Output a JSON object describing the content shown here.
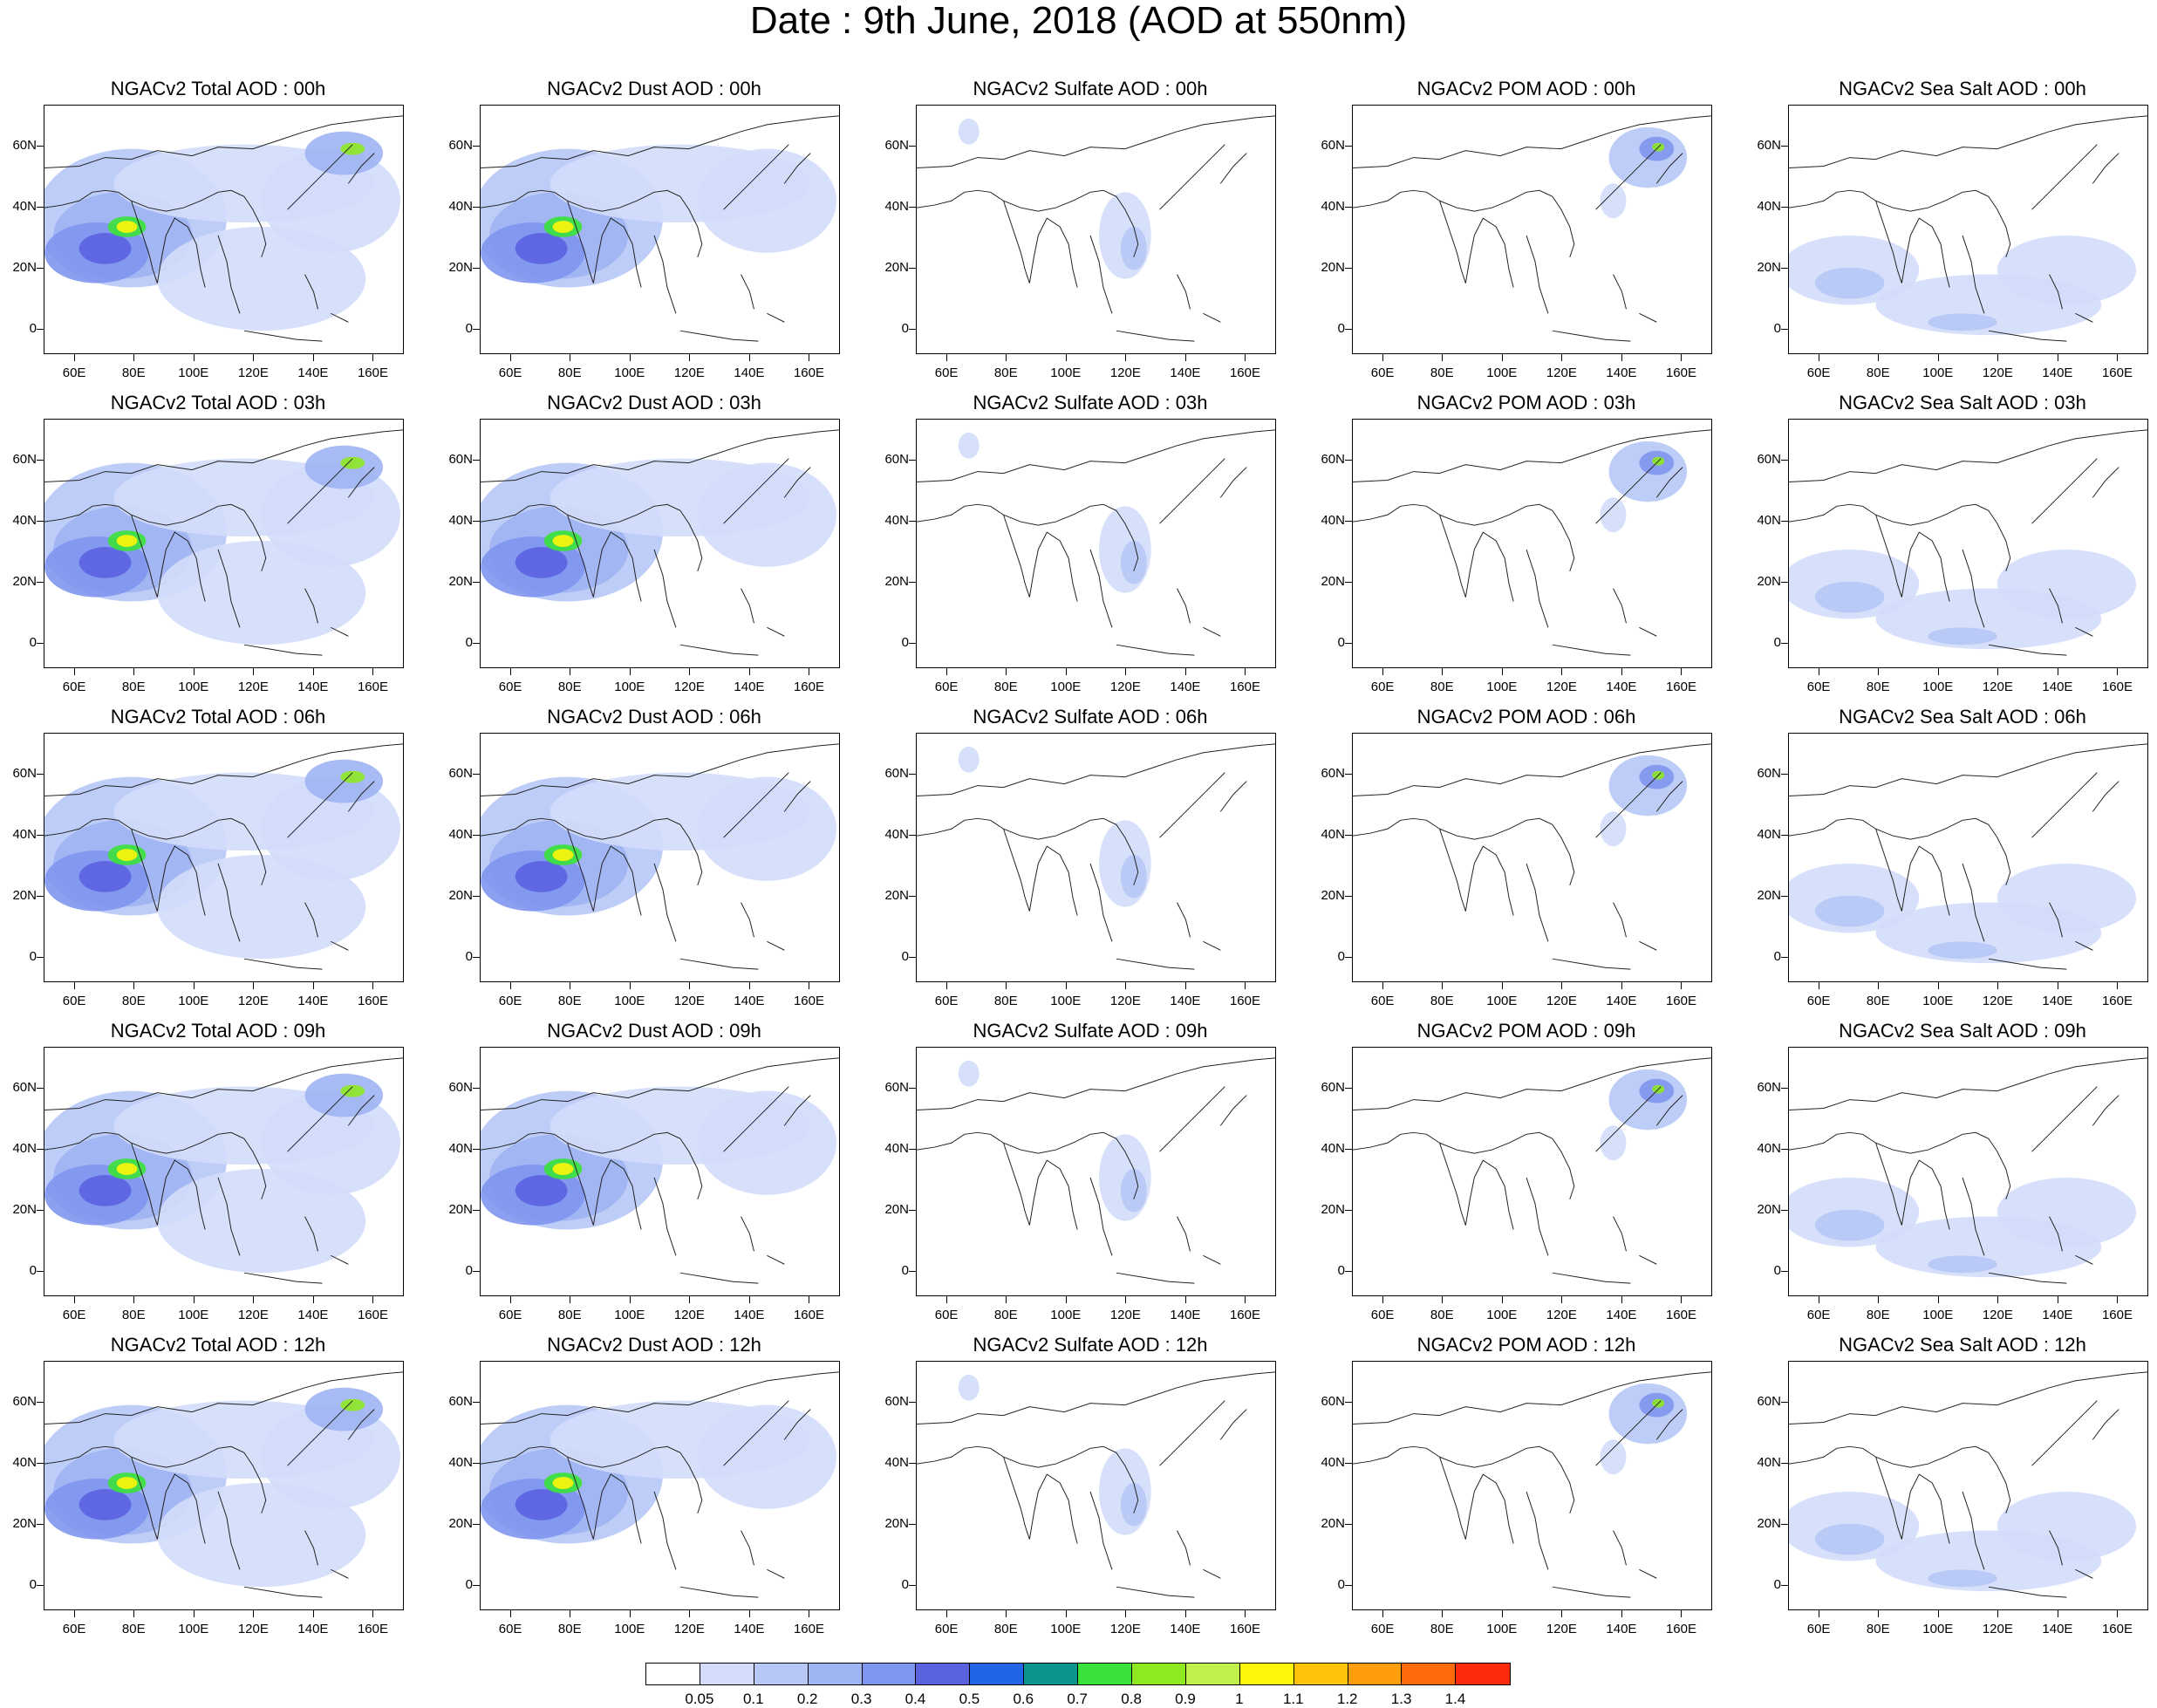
{
  "title": "Date : 9th June, 2018 (AOD at 550nm)",
  "axes": {
    "lat_ticks": [
      "60N",
      "40N",
      "20N",
      "0"
    ],
    "lon_ticks": [
      "60E",
      "80E",
      "100E",
      "120E",
      "140E",
      "160E"
    ]
  },
  "panels": [
    [
      "NGACv2 Total AOD : 00h",
      "NGACv2 Dust AOD : 00h",
      "NGACv2 Sulfate AOD : 00h",
      "NGACv2 POM AOD : 00h",
      "NGACv2 Sea Salt AOD : 00h"
    ],
    [
      "NGACv2 Total AOD : 03h",
      "NGACv2 Dust AOD : 03h",
      "NGACv2 Sulfate AOD : 03h",
      "NGACv2 POM AOD : 03h",
      "NGACv2 Sea Salt AOD : 03h"
    ],
    [
      "NGACv2 Total AOD : 06h",
      "NGACv2 Dust AOD : 06h",
      "NGACv2 Sulfate AOD : 06h",
      "NGACv2 POM AOD : 06h",
      "NGACv2 Sea Salt AOD : 06h"
    ],
    [
      "NGACv2 Total AOD : 09h",
      "NGACv2 Dust AOD : 09h",
      "NGACv2 Sulfate AOD : 09h",
      "NGACv2 POM AOD : 09h",
      "NGACv2 Sea Salt  AOD : 09h"
    ],
    [
      "NGACv2 Total AOD  : 12h",
      "NGACv2 Dust AOD : 12h",
      "NGACv2 Sulfate AOD : 12h",
      "NGACv2 POM  AOD : 12h",
      "NGACv2 Sea Salt  AOD : 12h"
    ]
  ],
  "colorbar": {
    "labels": [
      "0.05",
      "0.1",
      "0.2",
      "0.3",
      "0.4",
      "0.5",
      "0.6",
      "0.7",
      "0.8",
      "0.9",
      "1",
      "1.1",
      "1.2",
      "1.3",
      "1.4"
    ],
    "colors": [
      "#ffffff",
      "#d3ddfb",
      "#b7c8f6",
      "#9fb4f3",
      "#7f96ee",
      "#5b62e0",
      "#1f65e6",
      "#0a958f",
      "#39e23a",
      "#8ee822",
      "#c2f04a",
      "#fff50a",
      "#ffc40a",
      "#ff9e0a",
      "#ff6a0a",
      "#ff2a0a"
    ]
  }
}
